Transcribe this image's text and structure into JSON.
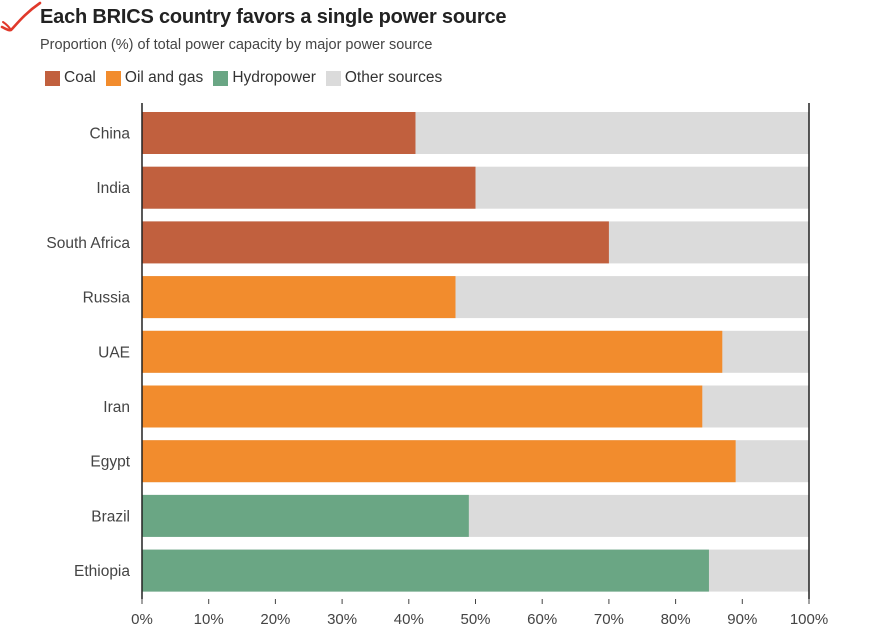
{
  "header": {
    "title": "Each BRICS country favors a single power source",
    "subtitle": "Proportion (%) of total power capacity by major power source"
  },
  "legend": [
    {
      "label": "Coal",
      "color": "#c1603e"
    },
    {
      "label": "Oil and gas",
      "color": "#f28c2d"
    },
    {
      "label": "Hydropower",
      "color": "#6aa684"
    },
    {
      "label": "Other sources",
      "color": "#dbdbdb"
    }
  ],
  "chart_data": {
    "type": "bar",
    "orientation": "horizontal",
    "stacked": true,
    "title": "Each BRICS country favors a single power source",
    "subtitle": "Proportion (%) of total power capacity by major power source",
    "categories": [
      "China",
      "India",
      "South Africa",
      "Russia",
      "UAE",
      "Iran",
      "Egypt",
      "Brazil",
      "Ethiopia"
    ],
    "primary_source": [
      "Coal",
      "Coal",
      "Coal",
      "Oil and gas",
      "Oil and gas",
      "Oil and gas",
      "Oil and gas",
      "Hydropower",
      "Hydropower"
    ],
    "values": [
      41,
      50,
      70,
      47,
      87,
      84,
      89,
      49,
      85
    ],
    "other_values": [
      59,
      50,
      30,
      53,
      13,
      16,
      11,
      51,
      15
    ],
    "colors": {
      "Coal": "#c1603e",
      "Oil and gas": "#f28c2d",
      "Hydropower": "#6aa684",
      "Other sources": "#dbdbdb"
    },
    "xlim": [
      0,
      100
    ],
    "xticks": [
      "0%",
      "10%",
      "20%",
      "30%",
      "40%",
      "50%",
      "60%",
      "70%",
      "80%",
      "90%",
      "100%"
    ],
    "grid": true,
    "legend_position": "top-left"
  }
}
